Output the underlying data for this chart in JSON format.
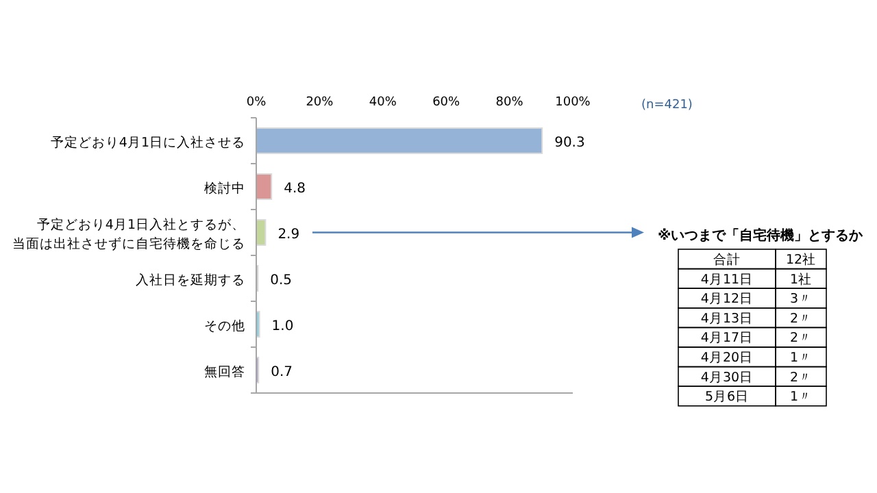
{
  "chart_data": [
    {
      "type": "bar",
      "orientation": "horizontal",
      "categories": [
        "予定どおり4月1日に入社させる",
        "検討中",
        "予定どおり4月1日入社とするが、当面は出社させずに自宅待機を命じる",
        "入社日を延期する",
        "その他",
        "無回答"
      ],
      "values": [
        90.3,
        4.8,
        2.9,
        0.5,
        1.0,
        0.7
      ],
      "value_labels": [
        "90.3",
        "4.8",
        "2.9",
        "0.5",
        "1.0",
        "0.7"
      ],
      "colors": [
        "#95b3d7",
        "#d99694",
        "#c3d69b",
        "#b7b7b7",
        "#93cddd",
        "#b3a2c7"
      ],
      "xlim": [
        0,
        100
      ],
      "xticks": [
        {
          "value": 0,
          "label": "0%"
        },
        {
          "value": 20,
          "label": "20%"
        },
        {
          "value": 40,
          "label": "40%"
        },
        {
          "value": 60,
          "label": "60%"
        },
        {
          "value": 80,
          "label": "80%"
        },
        {
          "value": 100,
          "label": "100%"
        }
      ],
      "annotations": [
        "(n=421)"
      ],
      "grid": false
    },
    {
      "type": "other",
      "title": "※いつまで「自宅待機」とするか",
      "annotations": [
        "合計",
        "12社",
        "4月11日",
        "1社",
        "4月12日",
        "3〃",
        "4月13日",
        "2〃",
        "4月17日",
        "2〃",
        "4月20日",
        "1〃",
        "4月30日",
        "2〃",
        "5月6日",
        "1〃"
      ]
    }
  ]
}
